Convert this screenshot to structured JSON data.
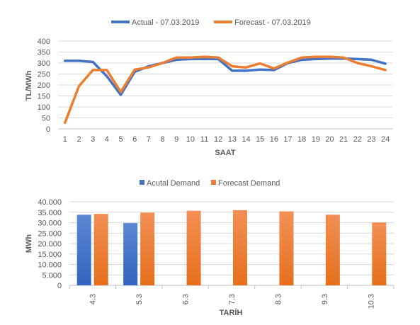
{
  "chart_data": [
    {
      "type": "line",
      "title": "",
      "xlabel": "SAAT",
      "ylabel": "TL/MWh",
      "ylim": [
        0,
        400
      ],
      "yticks": [
        "0",
        "50",
        "100",
        "150",
        "200",
        "250",
        "300",
        "350",
        "400"
      ],
      "grid": true,
      "legend_position": "top",
      "x": [
        "1",
        "2",
        "3",
        "4",
        "5",
        "6",
        "7",
        "8",
        "9",
        "10",
        "11",
        "12",
        "13",
        "14",
        "15",
        "16",
        "17",
        "18",
        "19",
        "20",
        "21",
        "22",
        "23",
        "24"
      ],
      "series": [
        {
          "name": "Actual - 07.03.2019",
          "color": "#4472C4",
          "values": [
            310,
            310,
            305,
            240,
            155,
            260,
            285,
            300,
            315,
            318,
            318,
            318,
            265,
            265,
            270,
            268,
            300,
            315,
            318,
            320,
            320,
            318,
            315,
            297
          ]
        },
        {
          "name": "Forecast - 07.03.2019",
          "color": "#ED7D31",
          "values": [
            28,
            195,
            268,
            268,
            168,
            270,
            280,
            300,
            325,
            325,
            328,
            325,
            285,
            280,
            298,
            275,
            302,
            325,
            328,
            328,
            325,
            300,
            285,
            268
          ]
        }
      ]
    },
    {
      "type": "bar",
      "title": "",
      "xlabel": "TARİH",
      "ylabel": "MWh",
      "ylim": [
        0,
        40000
      ],
      "yticks": [
        "0",
        "5.000",
        "10.000",
        "15.000",
        "20.000",
        "25.000",
        "30.000",
        "35.000",
        "40.000"
      ],
      "grid": true,
      "legend_position": "top",
      "categories": [
        "4.3",
        "5.3",
        "6.3",
        "7.3",
        "8.3",
        "9.3",
        "10.3"
      ],
      "series": [
        {
          "name": "Acutal Demand",
          "color": "#4472C4",
          "values": [
            33800,
            29800,
            null,
            null,
            null,
            null,
            null
          ]
        },
        {
          "name": "Forecast Demand",
          "color": "#ED7D31",
          "values": [
            34200,
            34800,
            35700,
            36000,
            35400,
            33800,
            30100
          ]
        }
      ]
    }
  ]
}
